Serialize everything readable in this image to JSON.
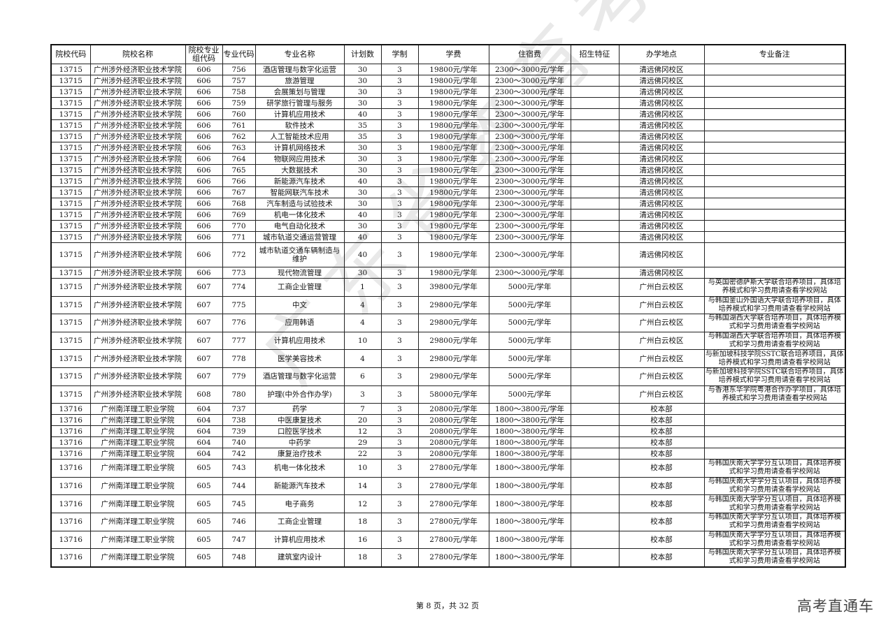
{
  "headers": [
    "院校代码",
    "院校名称",
    "院校专业组代码",
    "专业代码",
    "专业名称",
    "计划数",
    "学制",
    "学费",
    "住宿费",
    "招生特征",
    "办学地点",
    "专业备注"
  ],
  "rows": [
    [
      "13715",
      "广州涉外经济职业技术学院",
      "606",
      "756",
      "酒店管理与数字化运营",
      "30",
      "3",
      "19800元/学年",
      "2300～3000元/学年",
      "",
      "清远佛冈校区",
      ""
    ],
    [
      "13715",
      "广州涉外经济职业技术学院",
      "606",
      "757",
      "旅游管理",
      "30",
      "3",
      "19800元/学年",
      "2300～3000元/学年",
      "",
      "清远佛冈校区",
      ""
    ],
    [
      "13715",
      "广州涉外经济职业技术学院",
      "606",
      "758",
      "会展策划与管理",
      "30",
      "3",
      "19800元/学年",
      "2300～3000元/学年",
      "",
      "清远佛冈校区",
      ""
    ],
    [
      "13715",
      "广州涉外经济职业技术学院",
      "606",
      "759",
      "研学旅行管理与服务",
      "30",
      "3",
      "19800元/学年",
      "2300～3000元/学年",
      "",
      "清远佛冈校区",
      ""
    ],
    [
      "13715",
      "广州涉外经济职业技术学院",
      "606",
      "760",
      "计算机应用技术",
      "40",
      "3",
      "19800元/学年",
      "2300～3000元/学年",
      "",
      "清远佛冈校区",
      ""
    ],
    [
      "13715",
      "广州涉外经济职业技术学院",
      "606",
      "761",
      "软件技术",
      "35",
      "3",
      "19800元/学年",
      "2300～3000元/学年",
      "",
      "清远佛冈校区",
      ""
    ],
    [
      "13715",
      "广州涉外经济职业技术学院",
      "606",
      "762",
      "人工智能技术应用",
      "35",
      "3",
      "19800元/学年",
      "2300～3000元/学年",
      "",
      "清远佛冈校区",
      ""
    ],
    [
      "13715",
      "广州涉外经济职业技术学院",
      "606",
      "763",
      "计算机网络技术",
      "30",
      "3",
      "19800元/学年",
      "2300～3000元/学年",
      "",
      "清远佛冈校区",
      ""
    ],
    [
      "13715",
      "广州涉外经济职业技术学院",
      "606",
      "764",
      "物联网应用技术",
      "30",
      "3",
      "19800元/学年",
      "2300～3000元/学年",
      "",
      "清远佛冈校区",
      ""
    ],
    [
      "13715",
      "广州涉外经济职业技术学院",
      "606",
      "765",
      "大数据技术",
      "30",
      "3",
      "19800元/学年",
      "2300～3000元/学年",
      "",
      "清远佛冈校区",
      ""
    ],
    [
      "13715",
      "广州涉外经济职业技术学院",
      "606",
      "766",
      "新能源汽车技术",
      "40",
      "3",
      "19800元/学年",
      "2300～3000元/学年",
      "",
      "清远佛冈校区",
      ""
    ],
    [
      "13715",
      "广州涉外经济职业技术学院",
      "606",
      "767",
      "智能网联汽车技术",
      "30",
      "3",
      "19800元/学年",
      "2300～3000元/学年",
      "",
      "清远佛冈校区",
      ""
    ],
    [
      "13715",
      "广州涉外经济职业技术学院",
      "606",
      "768",
      "汽车制造与试验技术",
      "30",
      "3",
      "19800元/学年",
      "2300～3000元/学年",
      "",
      "清远佛冈校区",
      ""
    ],
    [
      "13715",
      "广州涉外经济职业技术学院",
      "606",
      "769",
      "机电一体化技术",
      "40",
      "3",
      "19800元/学年",
      "2300～3000元/学年",
      "",
      "清远佛冈校区",
      ""
    ],
    [
      "13715",
      "广州涉外经济职业技术学院",
      "606",
      "770",
      "电气自动化技术",
      "30",
      "3",
      "19800元/学年",
      "2300～3000元/学年",
      "",
      "清远佛冈校区",
      ""
    ],
    [
      "13715",
      "广州涉外经济职业技术学院",
      "606",
      "771",
      "城市轨道交通运营管理",
      "40",
      "3",
      "19800元/学年",
      "2300～3000元/学年",
      "",
      "清远佛冈校区",
      ""
    ],
    [
      "13715",
      "广州涉外经济职业技术学院",
      "606",
      "772",
      "城市轨道交通车辆制造与维护",
      "40",
      "3",
      "19800元/学年",
      "2300～3000元/学年",
      "",
      "清远佛冈校区",
      ""
    ],
    [
      "13715",
      "广州涉外经济职业技术学院",
      "606",
      "773",
      "现代物流管理",
      "30",
      "3",
      "19800元/学年",
      "2300～3000元/学年",
      "",
      "清远佛冈校区",
      ""
    ],
    [
      "13715",
      "广州涉外经济职业技术学院",
      "607",
      "774",
      "工商企业管理",
      "1",
      "3",
      "39800元/学年",
      "5000元/学年",
      "",
      "广州白云校区",
      "与英国密德萨斯大学联合培养项目，具体培养模式和学习费用请查看学校网站"
    ],
    [
      "13715",
      "广州涉外经济职业技术学院",
      "607",
      "775",
      "中文",
      "4",
      "3",
      "29800元/学年",
      "5000元/学年",
      "",
      "广州白云校区",
      "与韩国釜山外国语大学联合培养项目，具体培养模式和学习费用请查看学校网站"
    ],
    [
      "13715",
      "广州涉外经济职业技术学院",
      "607",
      "776",
      "应用韩语",
      "4",
      "3",
      "29800元/学年",
      "5000元/学年",
      "",
      "广州白云校区",
      "与韩国湖西大学联合培养项目，具体培养模式和学习费用请查看学校网站"
    ],
    [
      "13715",
      "广州涉外经济职业技术学院",
      "607",
      "777",
      "计算机应用技术",
      "10",
      "3",
      "29800元/学年",
      "5000元/学年",
      "",
      "广州白云校区",
      "与韩国湖西大学联合培养项目，具体培养模式和学习费用请查看学校网站"
    ],
    [
      "13715",
      "广州涉外经济职业技术学院",
      "607",
      "778",
      "医学美容技术",
      "4",
      "3",
      "29800元/学年",
      "5000元/学年",
      "",
      "广州白云校区",
      "与新加坡科技学院SSTC联合培养项目，具体培养模式和学习费用请查看学校网站"
    ],
    [
      "13715",
      "广州涉外经济职业技术学院",
      "607",
      "779",
      "酒店管理与数字化运营",
      "6",
      "3",
      "29800元/学年",
      "5000元/学年",
      "",
      "广州白云校区",
      "与新加坡科技学院SSTC联合培养项目，具体培养模式和学习费用请查看学校网站"
    ],
    [
      "13715",
      "广州涉外经济职业技术学院",
      "608",
      "780",
      "护理(中外合作办学)",
      "3",
      "3",
      "58000元/学年",
      "5000元/学年",
      "",
      "广州白云校区",
      "与香港东华学院粤港合作办学项目，具体培养模式和学习费用请查看学校网站"
    ],
    [
      "13716",
      "广州南洋理工职业学院",
      "604",
      "737",
      "药学",
      "7",
      "3",
      "20800元/学年",
      "1800～3800元/学年",
      "",
      "校本部",
      ""
    ],
    [
      "13716",
      "广州南洋理工职业学院",
      "604",
      "738",
      "中医康复技术",
      "20",
      "3",
      "20800元/学年",
      "1800～3800元/学年",
      "",
      "校本部",
      ""
    ],
    [
      "13716",
      "广州南洋理工职业学院",
      "604",
      "739",
      "口腔医学技术",
      "12",
      "3",
      "20800元/学年",
      "1800～3800元/学年",
      "",
      "校本部",
      ""
    ],
    [
      "13716",
      "广州南洋理工职业学院",
      "604",
      "740",
      "中药学",
      "29",
      "3",
      "20800元/学年",
      "1800～3800元/学年",
      "",
      "校本部",
      ""
    ],
    [
      "13716",
      "广州南洋理工职业学院",
      "604",
      "742",
      "康复治疗技术",
      "22",
      "3",
      "20800元/学年",
      "1800～3800元/学年",
      "",
      "校本部",
      ""
    ],
    [
      "13716",
      "广州南洋理工职业学院",
      "605",
      "743",
      "机电一体化技术",
      "10",
      "3",
      "27800元/学年",
      "1800～3800元/学年",
      "",
      "校本部",
      "与韩国庆南大学学分互认项目，具体培养模式和学习费用请查看学校网站"
    ],
    [
      "13716",
      "广州南洋理工职业学院",
      "605",
      "744",
      "新能源汽车技术",
      "14",
      "3",
      "27800元/学年",
      "1800～3800元/学年",
      "",
      "校本部",
      "与韩国庆南大学学分互认项目，具体培养模式和学习费用请查看学校网站"
    ],
    [
      "13716",
      "广州南洋理工职业学院",
      "605",
      "745",
      "电子商务",
      "12",
      "3",
      "27800元/学年",
      "1800～3800元/学年",
      "",
      "校本部",
      "与韩国庆南大学学分互认项目，具体培养模式和学习费用请查看学校网站"
    ],
    [
      "13716",
      "广州南洋理工职业学院",
      "605",
      "746",
      "工商企业管理",
      "18",
      "3",
      "27800元/学年",
      "1800～3800元/学年",
      "",
      "校本部",
      "与韩国庆南大学学分互认项目，具体培养模式和学习费用请查看学校网站"
    ],
    [
      "13716",
      "广州南洋理工职业学院",
      "605",
      "747",
      "计算机应用技术",
      "16",
      "3",
      "27800元/学年",
      "1800～3800元/学年",
      "",
      "校本部",
      "与韩国庆南大学学分互认项目，具体培养模式和学习费用请查看学校网站"
    ],
    [
      "13716",
      "广州南洋理工职业学院",
      "605",
      "748",
      "建筑室内设计",
      "18",
      "3",
      "27800元/学年",
      "1800～3800元/学年",
      "",
      "校本部",
      "与韩国庆南大学学分互认项目，具体培养模式和学习费用请查看学校网站"
    ]
  ],
  "footer": {
    "page_text": "第 8 页，共 32 页"
  },
  "watermark": {
    "brand": "高考直通车",
    "seal_text": "广东省教育考试院"
  }
}
